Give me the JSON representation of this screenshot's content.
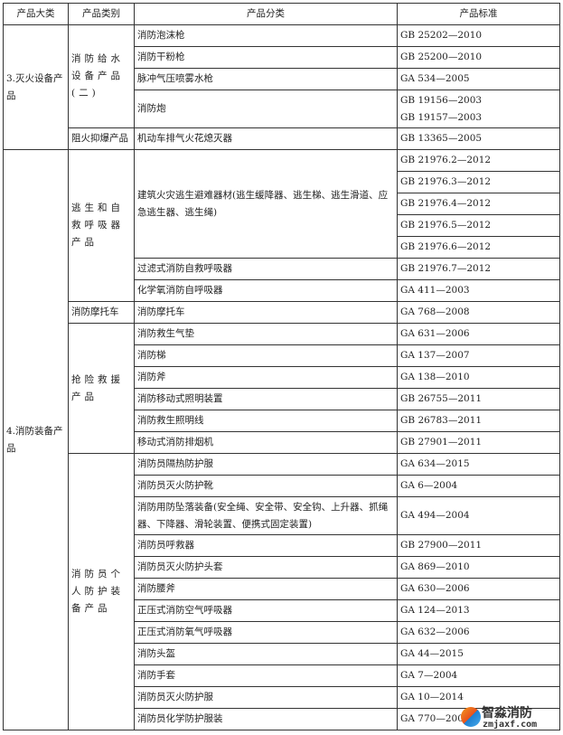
{
  "headers": [
    "产品大类",
    "产品类别",
    "产品分类",
    "产品标准"
  ],
  "majors": [
    {
      "label": "3.灭火设备产品",
      "categories": [
        {
          "label": "消防给水设备产品(二)",
          "products": [
            {
              "name": "消防泡沫枪",
              "standards": [
                "GB 25202—2010"
              ]
            },
            {
              "name": "消防干粉枪",
              "standards": [
                "GB 25200—2010"
              ]
            },
            {
              "name": "脉冲气压喷雾水枪",
              "standards": [
                "GA 534—2005"
              ]
            },
            {
              "name": "消防炮",
              "standards": [
                "GB 19156—2003\nGB 19157—2003"
              ]
            }
          ]
        },
        {
          "label": "阻火抑爆产品",
          "products": [
            {
              "name": "机动车排气火花熄灭器",
              "standards": [
                "GB 13365—2005"
              ]
            }
          ]
        }
      ]
    },
    {
      "label": "4.消防装备产品",
      "categories": [
        {
          "label": "逃生和自救呼吸器产品",
          "products": [
            {
              "name": "建筑火灾逃生避难器材(逃生缓降器、逃生梯、逃生滑道、应急逃生器、逃生绳)",
              "standards": [
                "GB 21976.2—2012",
                "GB 21976.3—2012",
                "GB 21976.4—2012",
                "GB 21976.5—2012",
                "GB 21976.6—2012"
              ]
            },
            {
              "name": "过滤式消防自救呼吸器",
              "standards": [
                "GB 21976.7—2012"
              ]
            },
            {
              "name": "化学氧消防自呼吸器",
              "standards": [
                "GA 411—2003"
              ]
            }
          ]
        },
        {
          "label": "消防摩托车",
          "products": [
            {
              "name": "消防摩托车",
              "standards": [
                "GA 768—2008"
              ]
            }
          ]
        },
        {
          "label": "抢险救援产品",
          "products": [
            {
              "name": "消防救生气垫",
              "standards": [
                "GA 631—2006"
              ]
            },
            {
              "name": "消防梯",
              "standards": [
                "GA 137—2007"
              ]
            },
            {
              "name": "消防斧",
              "standards": [
                "GA 138—2010"
              ]
            },
            {
              "name": "消防移动式照明装置",
              "standards": [
                "GB 26755—2011"
              ]
            },
            {
              "name": "消防救生照明线",
              "standards": [
                "GB 26783—2011"
              ]
            },
            {
              "name": "移动式消防排烟机",
              "standards": [
                "GB 27901—2011"
              ]
            }
          ]
        },
        {
          "label": "消防员个人防护装备产品",
          "products": [
            {
              "name": "消防员隔热防护服",
              "standards": [
                "GA 634—2015"
              ]
            },
            {
              "name": "消防员灭火防护靴",
              "standards": [
                "GA 6—2004"
              ]
            },
            {
              "name": "消防用防坠落装备(安全绳、安全带、安全钩、上升器、抓绳器、下降器、滑轮装置、便携式固定装置)",
              "standards": [
                "GA 494—2004"
              ]
            },
            {
              "name": "消防员呼救器",
              "standards": [
                "GB 27900—2011"
              ]
            },
            {
              "name": "消防员灭火防护头套",
              "standards": [
                "GA 869—2010"
              ]
            },
            {
              "name": "消防腰斧",
              "standards": [
                "GA 630—2006"
              ]
            },
            {
              "name": "正压式消防空气呼吸器",
              "standards": [
                "GA 124—2013"
              ]
            },
            {
              "name": "正压式消防氧气呼吸器",
              "standards": [
                "GA 632—2006"
              ]
            },
            {
              "name": "消防头盔",
              "standards": [
                "GA 44—2015"
              ]
            },
            {
              "name": "消防手套",
              "standards": [
                "GA 7—2004"
              ]
            },
            {
              "name": "消防员灭火防护服",
              "standards": [
                "GA 10—2014"
              ]
            },
            {
              "name": "消防员化学防护服装",
              "standards": [
                "GA 770—2008"
              ]
            }
          ]
        }
      ]
    }
  ],
  "watermark": {
    "name": "智淼消防",
    "url": "zmjaxf.com"
  }
}
